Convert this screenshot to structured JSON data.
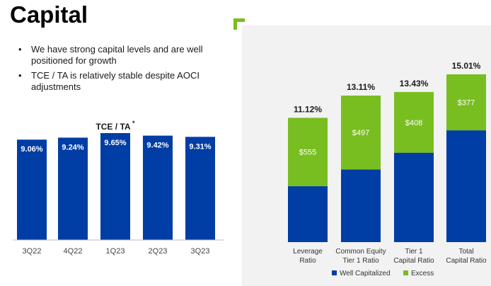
{
  "page": {
    "title": "Capital"
  },
  "bullets": [
    "We have strong capital levels and are well positioned for growth",
    "TCE / TA is relatively stable despite AOCI adjustments"
  ],
  "colors": {
    "navy": "#003da5",
    "green": "#78be20",
    "text": "#1a1a1a"
  },
  "chart_data": [
    {
      "type": "bar",
      "title": "TCE / TA",
      "title_marker": "*",
      "categories": [
        "3Q22",
        "4Q22",
        "1Q23",
        "2Q23",
        "3Q23"
      ],
      "values": [
        9.06,
        9.24,
        9.65,
        9.42,
        9.31
      ],
      "value_labels": [
        "9.06%",
        "9.24%",
        "9.65%",
        "9.42%",
        "9.31%"
      ],
      "ylim": [
        0,
        9.65
      ],
      "xlabel": "",
      "ylabel": ""
    },
    {
      "type": "bar",
      "stacked": true,
      "categories": [
        [
          "Leverage",
          "Ratio"
        ],
        [
          "Common Equity",
          "Tier 1 Ratio"
        ],
        [
          "Tier 1",
          "Capital Ratio"
        ],
        [
          "Total",
          "Capital Ratio"
        ]
      ],
      "totals": [
        11.12,
        13.11,
        13.43,
        15.01
      ],
      "total_labels": [
        "11.12%",
        "13.11%",
        "13.43%",
        "15.01%"
      ],
      "series": [
        {
          "name": "Well Capitalized",
          "values": [
            5.0,
            6.5,
            8.0,
            10.0
          ]
        },
        {
          "name": "Excess",
          "values": [
            6.12,
            6.61,
            5.43,
            5.01
          ],
          "labels": [
            "$555",
            "$497",
            "$408",
            "$377"
          ]
        }
      ],
      "ylim": [
        0,
        15.01
      ],
      "legend": "bottom"
    }
  ]
}
